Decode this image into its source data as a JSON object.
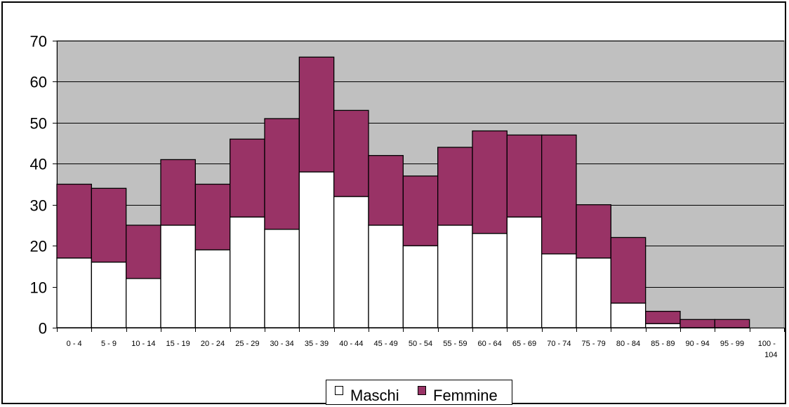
{
  "chart_data": {
    "type": "bar",
    "stacked": true,
    "categories": [
      "0 - 4",
      "5 - 9",
      "10 - 14",
      "15 - 19",
      "20 - 24",
      "25 - 29",
      "30 - 34",
      "35 - 39",
      "40 - 44",
      "45 - 49",
      "50 - 54",
      "55 - 59",
      "60 - 64",
      "65 - 69",
      "70 - 74",
      "75 - 79",
      "80 - 84",
      "85 - 89",
      "90 - 94",
      "95 - 99",
      "100 - 104"
    ],
    "series": [
      {
        "name": "Maschi",
        "color": "#ffffff",
        "values": [
          17,
          16,
          12,
          25,
          19,
          27,
          24,
          38,
          32,
          25,
          20,
          25,
          23,
          27,
          18,
          17,
          6,
          1,
          0,
          0,
          0
        ]
      },
      {
        "name": "Femmine",
        "color": "#993366",
        "values": [
          18,
          18,
          13,
          16,
          16,
          19,
          27,
          28,
          21,
          17,
          17,
          19,
          25,
          20,
          29,
          13,
          16,
          3,
          2,
          2,
          0
        ]
      }
    ],
    "ylim": [
      0,
      70
    ],
    "yticks": [
      0,
      10,
      20,
      30,
      40,
      50,
      60,
      70
    ],
    "grid": true,
    "plot_background": "#c0c0c0",
    "legend_position": "bottom",
    "title": "",
    "xlabel": "",
    "ylabel": ""
  }
}
